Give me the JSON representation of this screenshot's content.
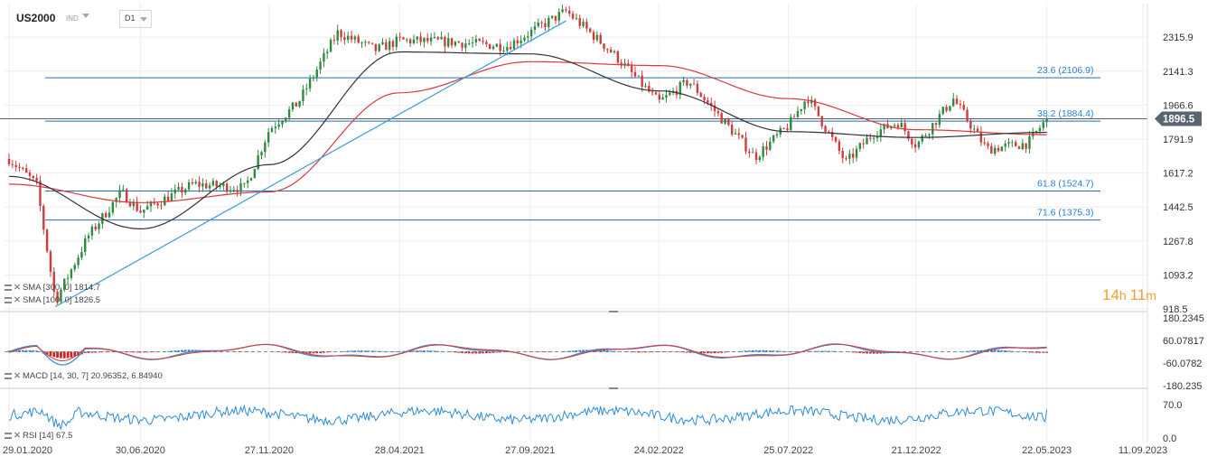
{
  "toolbar": {
    "symbol": "US2000",
    "exchange": "IND",
    "timeframe": "D1"
  },
  "countdown": {
    "hours": "14",
    "hours_unit": "h",
    "minutes": "11",
    "minutes_unit": "m"
  },
  "indicators": {
    "sma300": {
      "name": "SMA",
      "params": "[300, 0]",
      "value": "1814.7"
    },
    "sma100": {
      "name": "SMA",
      "params": "[100, 0]",
      "value": "1826.5"
    },
    "macd": {
      "name": "MACD",
      "params": "[14, 30, 7]",
      "value1": "20.96352,",
      "value2": "6.84940"
    },
    "rsi": {
      "name": "RSI",
      "params": "[14]",
      "value": "67.5"
    }
  },
  "chart_data": {
    "type": "candlestick",
    "title": "US2000",
    "x_dates": [
      "29.01.2020",
      "30.06.2020",
      "27.11.2020",
      "28.04.2021",
      "27.09.2021",
      "24.02.2022",
      "25.07.2022",
      "21.12.2022",
      "22.05.2023",
      "11.09.2023"
    ],
    "x_ticks": [
      "29.01.2020",
      "30.06.2020",
      "27.11.2020",
      "28.04.2021",
      "27.09.2021",
      "24.02.2022",
      "25.07.2022",
      "21.12.2022",
      "22.05.2023",
      "11.09.2023"
    ],
    "price_axis": {
      "ticks": [
        "2315.9",
        "2141.3",
        "1966.6",
        "1791.9",
        "1617.2",
        "1442.5",
        "1267.8",
        "1093.2",
        "918.5"
      ],
      "range": [
        918.5,
        2405
      ]
    },
    "last_price": "1896.5",
    "last_price_color": "#5a6370",
    "price_path": [
      [
        "29.01.2020",
        1690
      ],
      [
        "01.03.2020",
        1560
      ],
      [
        "23.03.2020",
        960
      ],
      [
        "30.04.2020",
        1290
      ],
      [
        "08.06.2020",
        1520
      ],
      [
        "30.06.2020",
        1420
      ],
      [
        "31.08.2020",
        1560
      ],
      [
        "30.10.2020",
        1540
      ],
      [
        "27.11.2020",
        1840
      ],
      [
        "31.12.2020",
        1980
      ],
      [
        "15.02.2021",
        2340
      ],
      [
        "31.03.2021",
        2250
      ],
      [
        "28.04.2021",
        2300
      ],
      [
        "30.06.2021",
        2290
      ],
      [
        "31.08.2021",
        2270
      ],
      [
        "08.11.2021",
        2450
      ],
      [
        "31.12.2021",
        2240
      ],
      [
        "24.02.2022",
        1980
      ],
      [
        "31.03.2022",
        2090
      ],
      [
        "16.06.2022",
        1700
      ],
      [
        "25.07.2022",
        1860
      ],
      [
        "16.08.2022",
        2010
      ],
      [
        "30.09.2022",
        1670
      ],
      [
        "31.10.2022",
        1820
      ],
      [
        "30.11.2022",
        1880
      ],
      [
        "21.12.2022",
        1760
      ],
      [
        "02.02.2023",
        2000
      ],
      [
        "13.03.2023",
        1740
      ],
      [
        "30.04.2023",
        1770
      ],
      [
        "22.05.2023",
        1896.5
      ]
    ],
    "series": [
      {
        "name": "SMA [300, 0]",
        "color": "#d8393a",
        "current": "1814.7",
        "points": [
          [
            "29.01.2020",
            1560
          ],
          [
            "30.06.2020",
            1465
          ],
          [
            "27.11.2020",
            1520
          ],
          [
            "28.04.2021",
            2030
          ],
          [
            "27.09.2021",
            2190
          ],
          [
            "24.02.2022",
            2170
          ],
          [
            "25.07.2022",
            2000
          ],
          [
            "21.12.2022",
            1840
          ],
          [
            "22.05.2023",
            1814.7
          ]
        ]
      },
      {
        "name": "SMA [100, 0]",
        "color": "#333333",
        "current": "1826.5",
        "points": [
          [
            "29.01.2020",
            1600
          ],
          [
            "30.06.2020",
            1330
          ],
          [
            "27.11.2020",
            1660
          ],
          [
            "28.04.2021",
            2240
          ],
          [
            "27.09.2021",
            2230
          ],
          [
            "24.02.2022",
            2040
          ],
          [
            "25.07.2022",
            1830
          ],
          [
            "21.12.2022",
            1800
          ],
          [
            "22.05.2023",
            1826.5
          ]
        ]
      }
    ],
    "fibonacci": [
      {
        "label": "23.6 (2106.9)",
        "value": 2106.9
      },
      {
        "label": "38.2 (1884.4)",
        "value": 1884.4
      },
      {
        "label": "61.8 (1524.7)",
        "value": 1524.7
      },
      {
        "label": "71.6 (1375.3)",
        "value": 1375.3
      }
    ],
    "trendline": {
      "from": [
        "23.03.2020",
        930
      ],
      "to": [
        "08.11.2021",
        2400
      ],
      "color": "#3a9ad9"
    },
    "horizontal_line": {
      "value": 1896.5,
      "color": "#5a6370"
    },
    "macd_panel": {
      "ticks": [
        "180.2345",
        "60.07817",
        "-60.0782",
        "-180.235"
      ],
      "range": [
        -180.235,
        180.2345
      ]
    },
    "rsi_panel": {
      "ticks": [
        "70.0",
        "0.0"
      ],
      "last": 67.5
    }
  }
}
